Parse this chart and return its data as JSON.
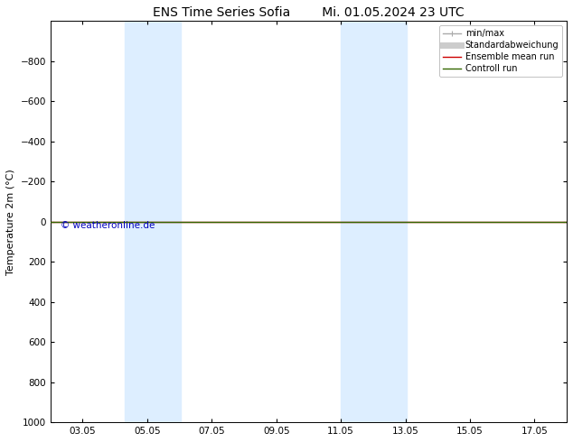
{
  "title": "ENS Time Series Sofia",
  "title2": "Mi. 01.05.2024 23 UTC",
  "ylabel": "Temperature 2m (°C)",
  "ylim_top": -1000,
  "ylim_bottom": 1000,
  "yticks": [
    -800,
    -600,
    -400,
    -200,
    0,
    200,
    400,
    600,
    800,
    1000
  ],
  "xlim_left": 2.0,
  "xlim_right": 18.0,
  "xtick_labels": [
    "03.05",
    "05.05",
    "07.05",
    "09.05",
    "11.05",
    "13.05",
    "15.05",
    "17.05"
  ],
  "xtick_positions": [
    3,
    5,
    7,
    9,
    11,
    13,
    15,
    17
  ],
  "green_line_y": 0,
  "background_color": "#ffffff",
  "shade_bands": [
    {
      "xmin": 4.3,
      "xmax": 6.05,
      "color": "#ddeeff"
    },
    {
      "xmin": 11.0,
      "xmax": 13.05,
      "color": "#ddeeff"
    }
  ],
  "legend_entries": [
    {
      "label": "min/max",
      "color": "#aaaaaa",
      "lw": 1.0
    },
    {
      "label": "Standardabweichung",
      "color": "#cccccc",
      "lw": 5
    },
    {
      "label": "Ensemble mean run",
      "color": "#cc0000",
      "lw": 1.0
    },
    {
      "label": "Controll run",
      "color": "#336600",
      "lw": 1.0
    }
  ],
  "copyright_text": "© weatheronline.de",
  "copyright_color": "#0000bb",
  "title_fontsize": 10,
  "legend_fontsize": 7,
  "axis_label_fontsize": 8,
  "tick_fontsize": 7.5
}
